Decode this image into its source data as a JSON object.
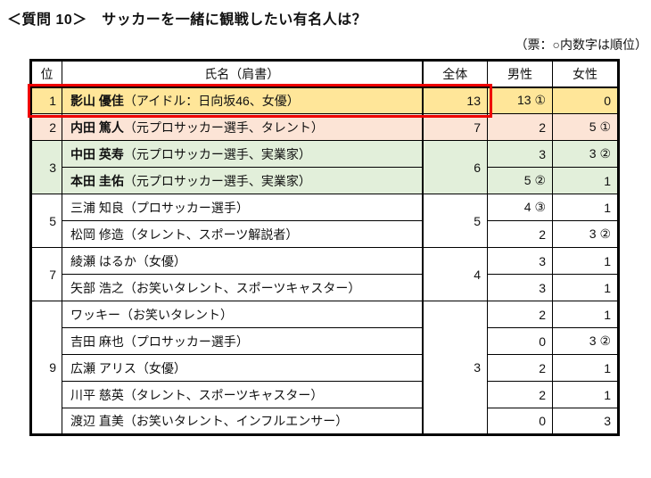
{
  "title": "＜質問 10＞　サッカーを一緒に観戦したい有名人は？",
  "note": "（票：○内数字は順位）",
  "colors": {
    "rank1_bg": "#FFE699",
    "rank2_bg": "#FCE4D6",
    "rank3_bg": "#E2EFDA",
    "highlight_border": "#EE0000"
  },
  "table": {
    "headers": {
      "rank": "位",
      "name": "氏名（肩書）",
      "total": "全体",
      "male": "男性",
      "female": "女性"
    },
    "groups": [
      {
        "rank": "1",
        "total": "13",
        "rows": [
          {
            "name": "影山 優佳",
            "title": "（アイドル：日向坂46、女優）",
            "male": "13 ①",
            "female": "0"
          }
        ]
      },
      {
        "rank": "2",
        "total": "7",
        "rows": [
          {
            "name": "内田 篤人",
            "title": "（元プロサッカー選手、タレント）",
            "male": "2",
            "female": "5 ①"
          }
        ]
      },
      {
        "rank": "3",
        "total": "6",
        "rows": [
          {
            "name": "中田 英寿",
            "title": "（元プロサッカー選手、実業家）",
            "male": "3",
            "female": "3 ②"
          },
          {
            "name": "本田 圭佑",
            "title": "（元プロサッカー選手、実業家）",
            "male": "5 ②",
            "female": "1"
          }
        ]
      },
      {
        "rank": "5",
        "total": "5",
        "rows": [
          {
            "name": "三浦 知良",
            "title": "（プロサッカー選手）",
            "male": "4 ③",
            "female": "1"
          },
          {
            "name": "松岡 修造",
            "title": "（タレント、スポーツ解説者）",
            "male": "2",
            "female": "3 ②"
          }
        ]
      },
      {
        "rank": "7",
        "total": "4",
        "rows": [
          {
            "name": "綾瀬 はるか",
            "title": "（女優）",
            "male": "3",
            "female": "1"
          },
          {
            "name": "矢部 浩之",
            "title": "（お笑いタレント、スポーツキャスター）",
            "male": "3",
            "female": "1"
          }
        ]
      },
      {
        "rank": "9",
        "total": "3",
        "rows": [
          {
            "name": "ワッキー",
            "title": "（お笑いタレント）",
            "male": "2",
            "female": "1"
          },
          {
            "name": "吉田 麻也",
            "title": "（プロサッカー選手）",
            "male": "0",
            "female": "3 ②"
          },
          {
            "name": "広瀬 アリス",
            "title": "（女優）",
            "male": "2",
            "female": "1"
          },
          {
            "name": "川平 慈英",
            "title": "（タレント、スポーツキャスター）",
            "male": "2",
            "female": "1"
          },
          {
            "name": "渡辺 直美",
            "title": "（お笑いタレント、インフルエンサー）",
            "male": "0",
            "female": "3"
          }
        ]
      }
    ]
  }
}
